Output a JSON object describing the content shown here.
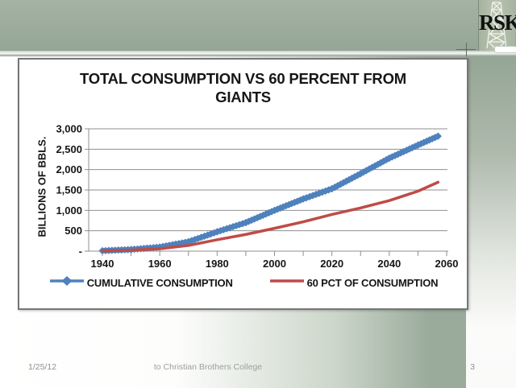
{
  "slide": {
    "logo_text": "RSK",
    "footer": {
      "date": "1/25/12",
      "credit": "to Christian Brothers College",
      "page": "3"
    }
  },
  "colors": {
    "band_green": "#9aab9b",
    "series_blue": "#4f81bd",
    "series_red": "#bf4b47",
    "gridline_gray": "#8f8f8f",
    "footer_text_gray": "#8b9191"
  },
  "chart_data": {
    "type": "line",
    "title": "TOTAL CONSUMPTION VS 60 PERCENT FROM GIANTS",
    "title_line1": "TOTAL CONSUMPTION VS 60 PERCENT FROM",
    "title_line2": "GIANTS",
    "ylabel": "BILLIONS OF BBLS.",
    "xlabel": "",
    "ylim": [
      0,
      3000
    ],
    "xlim": [
      1935,
      2062
    ],
    "grid": true,
    "legend_position": "bottom",
    "y_tick_values": [
      0,
      500,
      1000,
      1500,
      2000,
      2500,
      3000
    ],
    "y_tick_labels": [
      "-",
      "500",
      "1,000",
      "1,500",
      "2,000",
      "2,500",
      "3,000"
    ],
    "x_tick_values": [
      1940,
      1960,
      1980,
      2000,
      2020,
      2040,
      2060
    ],
    "x_minor_tick_step": 10,
    "x": [
      1940,
      1950,
      1960,
      1970,
      1980,
      1990,
      2000,
      2010,
      2020,
      2030,
      2040,
      2050,
      2057
    ],
    "series": [
      {
        "name": "CUMULATIVE CONSUMPTION",
        "color": "#4f81bd",
        "marker": "diamond",
        "values": [
          10,
          40,
          100,
          230,
          475,
          700,
          1000,
          1280,
          1530,
          1900,
          2280,
          2600,
          2820
        ]
      },
      {
        "name": "60 PCT OF CONSUMPTION",
        "color": "#bf4b47",
        "marker": "none",
        "values": [
          5,
          25,
          60,
          140,
          280,
          410,
          560,
          720,
          900,
          1060,
          1240,
          1470,
          1690
        ]
      }
    ]
  }
}
